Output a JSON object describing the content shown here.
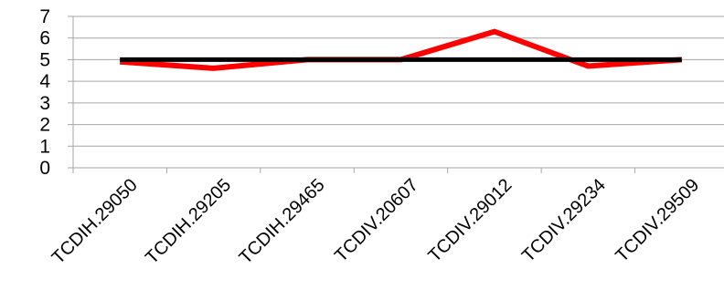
{
  "chart_data": {
    "type": "line",
    "categories": [
      "TCDIH.29050",
      "TCDIH.29205",
      "TCDIH.29465",
      "TCDIV.20607",
      "TCDIV.29012",
      "TCDIV.29234",
      "TCDIV.29509"
    ],
    "series": [
      {
        "values": [
          4.9,
          4.6,
          5.0,
          5.0,
          6.3,
          4.7,
          5.0
        ],
        "color": "#ff0000"
      },
      {
        "values": [
          5.0,
          5.0,
          5.0,
          5.0,
          5.0,
          5.0,
          5.0
        ],
        "color": "#000000"
      }
    ],
    "y_ticks": [
      "0",
      "1",
      "2",
      "3",
      "4",
      "5",
      "6",
      "7"
    ],
    "ylim": [
      0,
      7
    ],
    "grid": true,
    "legend": "none",
    "gridline_color": "#a6a6a6"
  }
}
